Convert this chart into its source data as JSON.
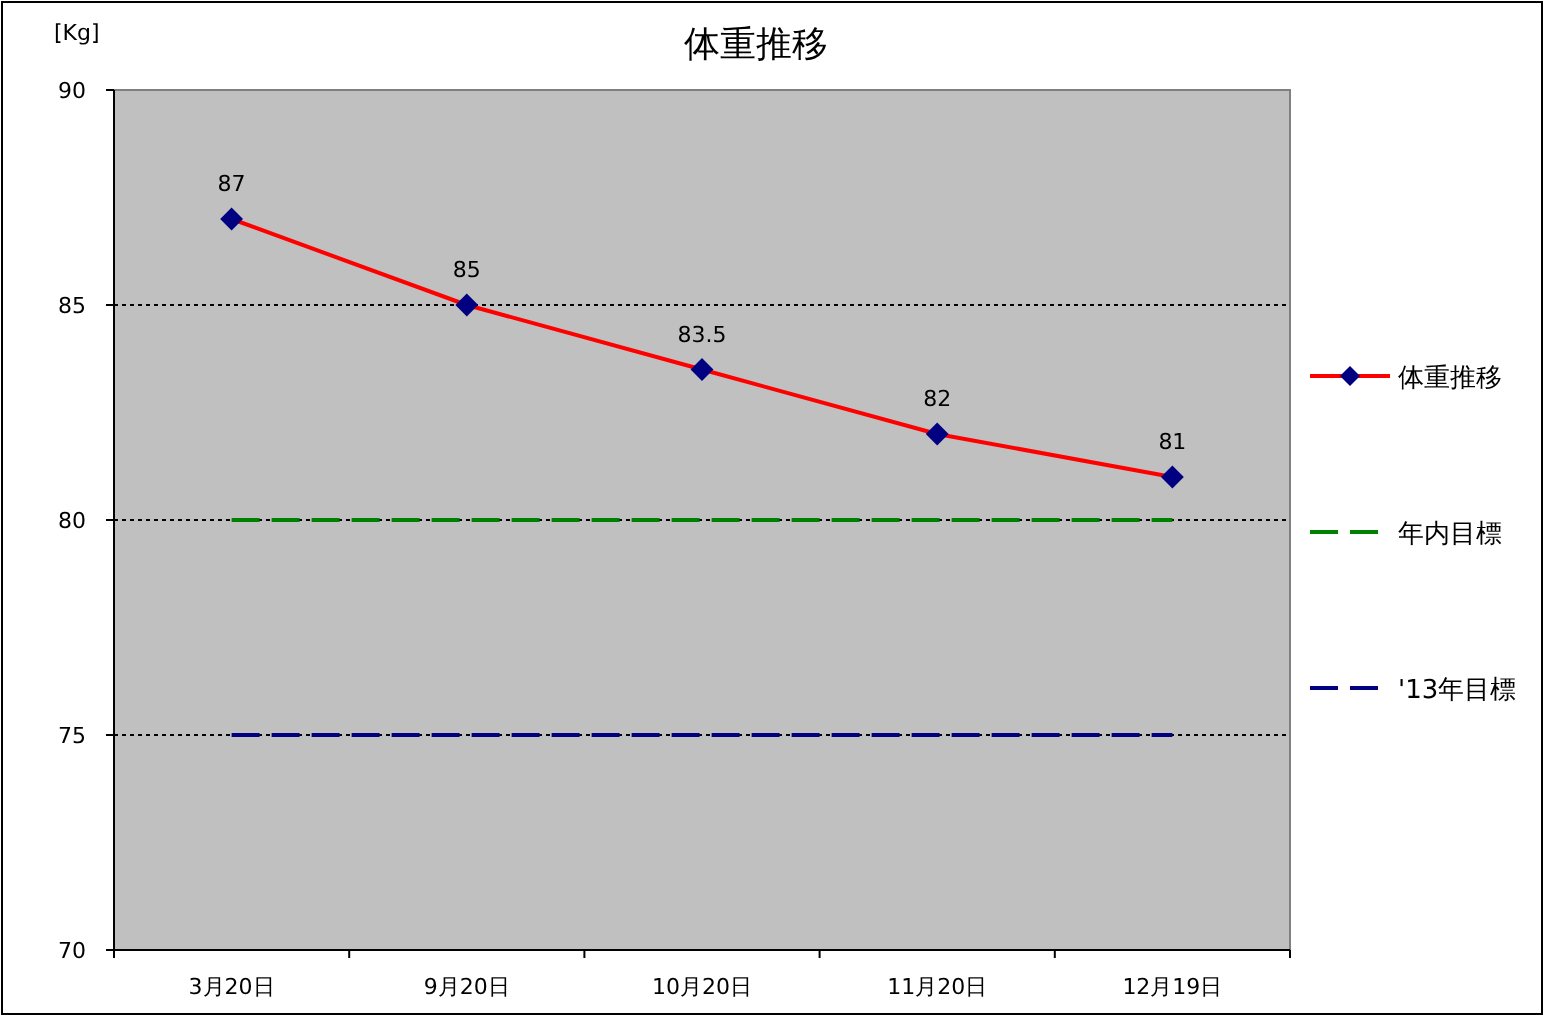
{
  "chart_data": {
    "type": "line",
    "title": "体重推移",
    "ylabel": "[Kg]",
    "categories": [
      "3月20日",
      "9月20日",
      "10月20日",
      "11月20日",
      "12月19日"
    ],
    "series": [
      {
        "name": "体重推移",
        "color": "#ff0000",
        "values": [
          87,
          85,
          83.5,
          82,
          81
        ],
        "marker": "diamond",
        "value_labels": [
          "87",
          "85",
          "83.5",
          "82",
          "81"
        ]
      },
      {
        "name": "年内目標",
        "color": "#008000",
        "values": [
          80,
          80,
          80,
          80,
          80
        ],
        "line_style": "dashed",
        "marker": "none"
      },
      {
        "name": "'13年目標",
        "color": "#000080",
        "values": [
          75,
          75,
          75,
          75,
          75
        ],
        "line_style": "dashed",
        "marker": "none"
      }
    ],
    "ylim": [
      70,
      90
    ],
    "yticks": [
      70,
      75,
      80,
      85,
      90
    ],
    "grid": "y",
    "legend": "right"
  }
}
